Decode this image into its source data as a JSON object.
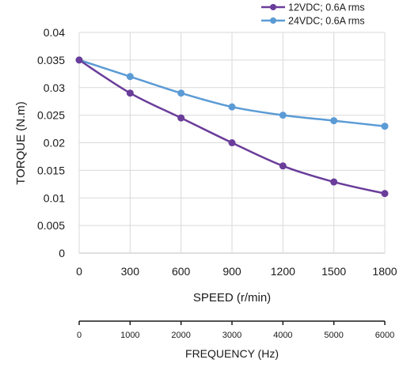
{
  "chart_data": {
    "type": "line",
    "xlabel": "SPEED (r/min)",
    "ylabel": "TORQUE  (N.m)",
    "x": [
      0,
      300,
      600,
      900,
      1200,
      1500,
      1800
    ],
    "xlim": [
      0,
      1800
    ],
    "ylim": [
      0,
      0.04
    ],
    "y_ticks": [
      "0",
      "0.005",
      "0.01",
      "0.015",
      "0.02",
      "0.025",
      "0.03",
      "0.035",
      "0.04"
    ],
    "x_ticks": [
      "0",
      "300",
      "600",
      "900",
      "1200",
      "1500",
      "1800"
    ],
    "grid": true,
    "legend_position": "top-right",
    "series": [
      {
        "name": "12VDC; 0.6A rms",
        "color": "#6a3d9a",
        "values": [
          0.035,
          0.029,
          0.0245,
          0.02,
          0.0158,
          0.0129,
          0.0108
        ]
      },
      {
        "name": "24VDC; 0.6A rms",
        "color": "#5b9bd5",
        "values": [
          0.035,
          0.032,
          0.029,
          0.0265,
          0.025,
          0.024,
          0.023
        ]
      }
    ],
    "secondary_axis": {
      "label": "FREQUENCY (Hz)",
      "ticks": [
        "0",
        "1000",
        "2000",
        "3000",
        "4000",
        "5000",
        "6000"
      ]
    }
  }
}
